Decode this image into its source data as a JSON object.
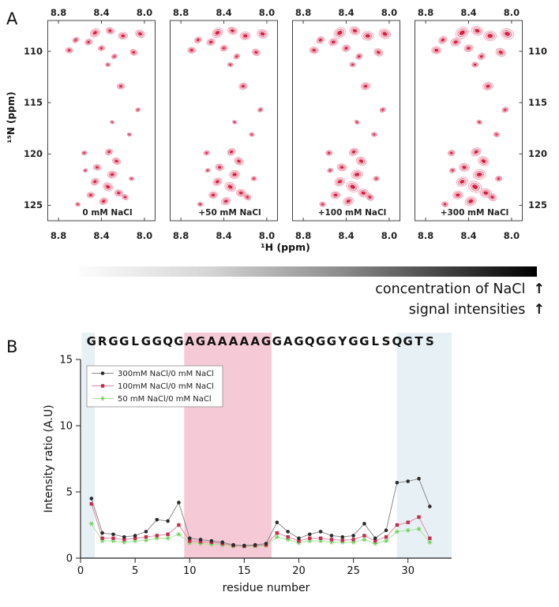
{
  "panel_a": {
    "label": "A",
    "x_axis_label": "¹H (ppm)",
    "y_axis_label": "¹⁵N (ppm)",
    "x_ticks": [
      "8.8",
      "8.4",
      "8.0"
    ],
    "x_tick_ppm": [
      8.8,
      8.4,
      8.0
    ],
    "y_ticks": [
      "110",
      "115",
      "120",
      "125"
    ],
    "y_tick_ppm": [
      110,
      115,
      120,
      125
    ],
    "h_range": [
      8.9,
      7.9
    ],
    "n_range": [
      107,
      126.5
    ],
    "intensity_factors": [
      0.85,
      0.95,
      1.05,
      1.15
    ],
    "peak_color": "#d81f3f",
    "panels": [
      {
        "label": "0 mM NaCl"
      },
      {
        "label": "+50 mM NaCl"
      },
      {
        "label": "+100 mM NaCl"
      },
      {
        "label": "+300 mM NaCl"
      }
    ],
    "peaks": [
      [
        8.46,
        108.2,
        1.15
      ],
      [
        8.32,
        108.0,
        0.95
      ],
      [
        8.2,
        108.5,
        1.05
      ],
      [
        8.52,
        109.1,
        0.85
      ],
      [
        8.64,
        108.9,
        0.75
      ],
      [
        8.04,
        108.3,
        1.1
      ],
      [
        8.7,
        109.9,
        0.8
      ],
      [
        8.4,
        109.7,
        0.75
      ],
      [
        8.28,
        110.5,
        0.65
      ],
      [
        8.1,
        110.1,
        0.85
      ],
      [
        8.34,
        111.3,
        0.55
      ],
      [
        8.22,
        113.4,
        0.85
      ],
      [
        8.06,
        115.7,
        0.55
      ],
      [
        8.3,
        116.9,
        0.45
      ],
      [
        8.14,
        118.1,
        0.5
      ],
      [
        8.56,
        119.9,
        0.6
      ],
      [
        8.33,
        119.8,
        0.85
      ],
      [
        8.26,
        120.7,
        0.95
      ],
      [
        8.44,
        121.3,
        0.85
      ],
      [
        8.3,
        122.0,
        1.05
      ],
      [
        8.46,
        122.7,
        0.95
      ],
      [
        8.34,
        123.2,
        1.15
      ],
      [
        8.24,
        123.8,
        0.95
      ],
      [
        8.5,
        124.0,
        0.85
      ],
      [
        8.38,
        124.6,
        0.95
      ],
      [
        8.18,
        124.2,
        0.75
      ],
      [
        8.62,
        124.9,
        0.55
      ],
      [
        8.12,
        122.4,
        0.55
      ],
      [
        8.55,
        121.6,
        0.5
      ]
    ]
  },
  "gradient_bar": {
    "caption_line1": "concentration of NaCl",
    "caption_line2": "signal intensities",
    "arrow": "↑"
  },
  "panel_b": {
    "label": "B"
  },
  "chart_data": {
    "type": "line",
    "sequence": "GRGGLGGQGAGAAAAAGGAGQGGYGGLSQGTS",
    "xlabel": "residue number",
    "ylabel": "Intensity ratio (A.U)",
    "xlim": [
      0,
      34
    ],
    "ylim": [
      0,
      15
    ],
    "x_ticks": [
      0,
      5,
      10,
      15,
      20,
      25,
      30
    ],
    "y_ticks": [
      0,
      5,
      10,
      15
    ],
    "grid": false,
    "legend_position": "top-left",
    "x": [
      1,
      2,
      3,
      4,
      5,
      6,
      7,
      8,
      9,
      10,
      11,
      12,
      13,
      14,
      15,
      16,
      17,
      18,
      19,
      20,
      21,
      22,
      23,
      24,
      25,
      26,
      27,
      28,
      29,
      30,
      31,
      32
    ],
    "series": [
      {
        "name": "300mM NaCl/0 mM NaCl",
        "marker": "circle",
        "color": "#2b2b2b",
        "line_color": "#8a8a8a",
        "values": [
          4.5,
          1.9,
          1.8,
          1.6,
          1.7,
          2.0,
          2.9,
          2.8,
          4.2,
          1.5,
          1.4,
          1.3,
          1.2,
          1.0,
          0.95,
          1.0,
          1.1,
          2.7,
          2.0,
          1.5,
          1.8,
          2.0,
          1.7,
          1.6,
          1.7,
          2.6,
          1.5,
          2.1,
          5.7,
          5.8,
          6.0,
          3.9
        ]
      },
      {
        "name": "100mM NaCl/0 mM NaCl",
        "marker": "square",
        "color": "#c62b4a",
        "line_color": "#e08aa0",
        "values": [
          4.1,
          1.5,
          1.5,
          1.4,
          1.5,
          1.6,
          1.7,
          1.8,
          2.5,
          1.3,
          1.25,
          1.2,
          1.1,
          0.95,
          0.9,
          0.95,
          1.0,
          1.9,
          1.6,
          1.3,
          1.5,
          1.5,
          1.4,
          1.35,
          1.4,
          1.7,
          1.3,
          1.6,
          2.5,
          2.7,
          3.1,
          1.5
        ]
      },
      {
        "name": "50 mM NaCl/0 mM NaCl",
        "marker": "star",
        "color": "#6fce5a",
        "line_color": "#a8e49a",
        "values": [
          2.6,
          1.3,
          1.3,
          1.2,
          1.3,
          1.35,
          1.5,
          1.5,
          1.8,
          1.15,
          1.1,
          1.05,
          1.0,
          0.9,
          0.88,
          0.9,
          0.95,
          1.6,
          1.4,
          1.15,
          1.3,
          1.3,
          1.2,
          1.2,
          1.2,
          1.4,
          1.1,
          1.3,
          2.0,
          2.1,
          2.2,
          1.2
        ]
      }
    ],
    "highlight_regions": [
      {
        "from": 0.1,
        "to": 1.3,
        "color": "#e7f0f5"
      },
      {
        "from": 9.5,
        "to": 17.5,
        "color": "#f6c9d6"
      },
      {
        "from": 29.0,
        "to": 34.0,
        "color": "#e7f0f5"
      }
    ]
  }
}
